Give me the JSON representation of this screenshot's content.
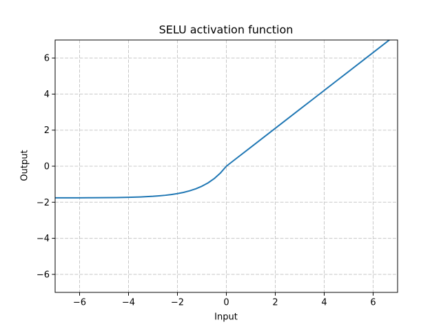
{
  "chart_data": {
    "type": "line",
    "title": "SELU activation function",
    "xlabel": "Input",
    "ylabel": "Output",
    "xlim": [
      -7,
      7
    ],
    "ylim": [
      -7,
      7
    ],
    "xticks": [
      -6,
      -4,
      -2,
      0,
      2,
      4,
      6
    ],
    "yticks": [
      -6,
      -4,
      -2,
      0,
      2,
      4,
      6
    ],
    "grid": true,
    "grid_style": "dashed",
    "grid_color": "#c8c8c8",
    "line_color": "#1f77b4",
    "axis_color": "#000000",
    "legend": "none",
    "series": [
      {
        "name": "SELU",
        "x": [
          -7,
          -6.5,
          -6,
          -5.5,
          -5,
          -4.5,
          -4,
          -3.5,
          -3,
          -2.75,
          -2.5,
          -2.25,
          -2,
          -1.75,
          -1.5,
          -1.25,
          -1,
          -0.75,
          -0.5,
          -0.25,
          0,
          0.5,
          1,
          1.5,
          2,
          2.5,
          3,
          3.5,
          4,
          4.5,
          5,
          5.5,
          6,
          6.5,
          7
        ],
        "y": [
          -1.7565,
          -1.7555,
          -1.7537,
          -1.7509,
          -1.7463,
          -1.7386,
          -1.7259,
          -1.705,
          -1.6706,
          -1.6457,
          -1.6138,
          -1.5728,
          -1.5202,
          -1.4526,
          -1.3658,
          -1.2544,
          -1.1113,
          -0.9277,
          -0.6918,
          -0.3889,
          0,
          0.5254,
          1.0507,
          1.5761,
          2.1014,
          2.6268,
          3.1521,
          3.6775,
          4.2028,
          4.7282,
          5.2535,
          5.7789,
          6.3042,
          6.8296,
          7.3549
        ]
      }
    ]
  }
}
